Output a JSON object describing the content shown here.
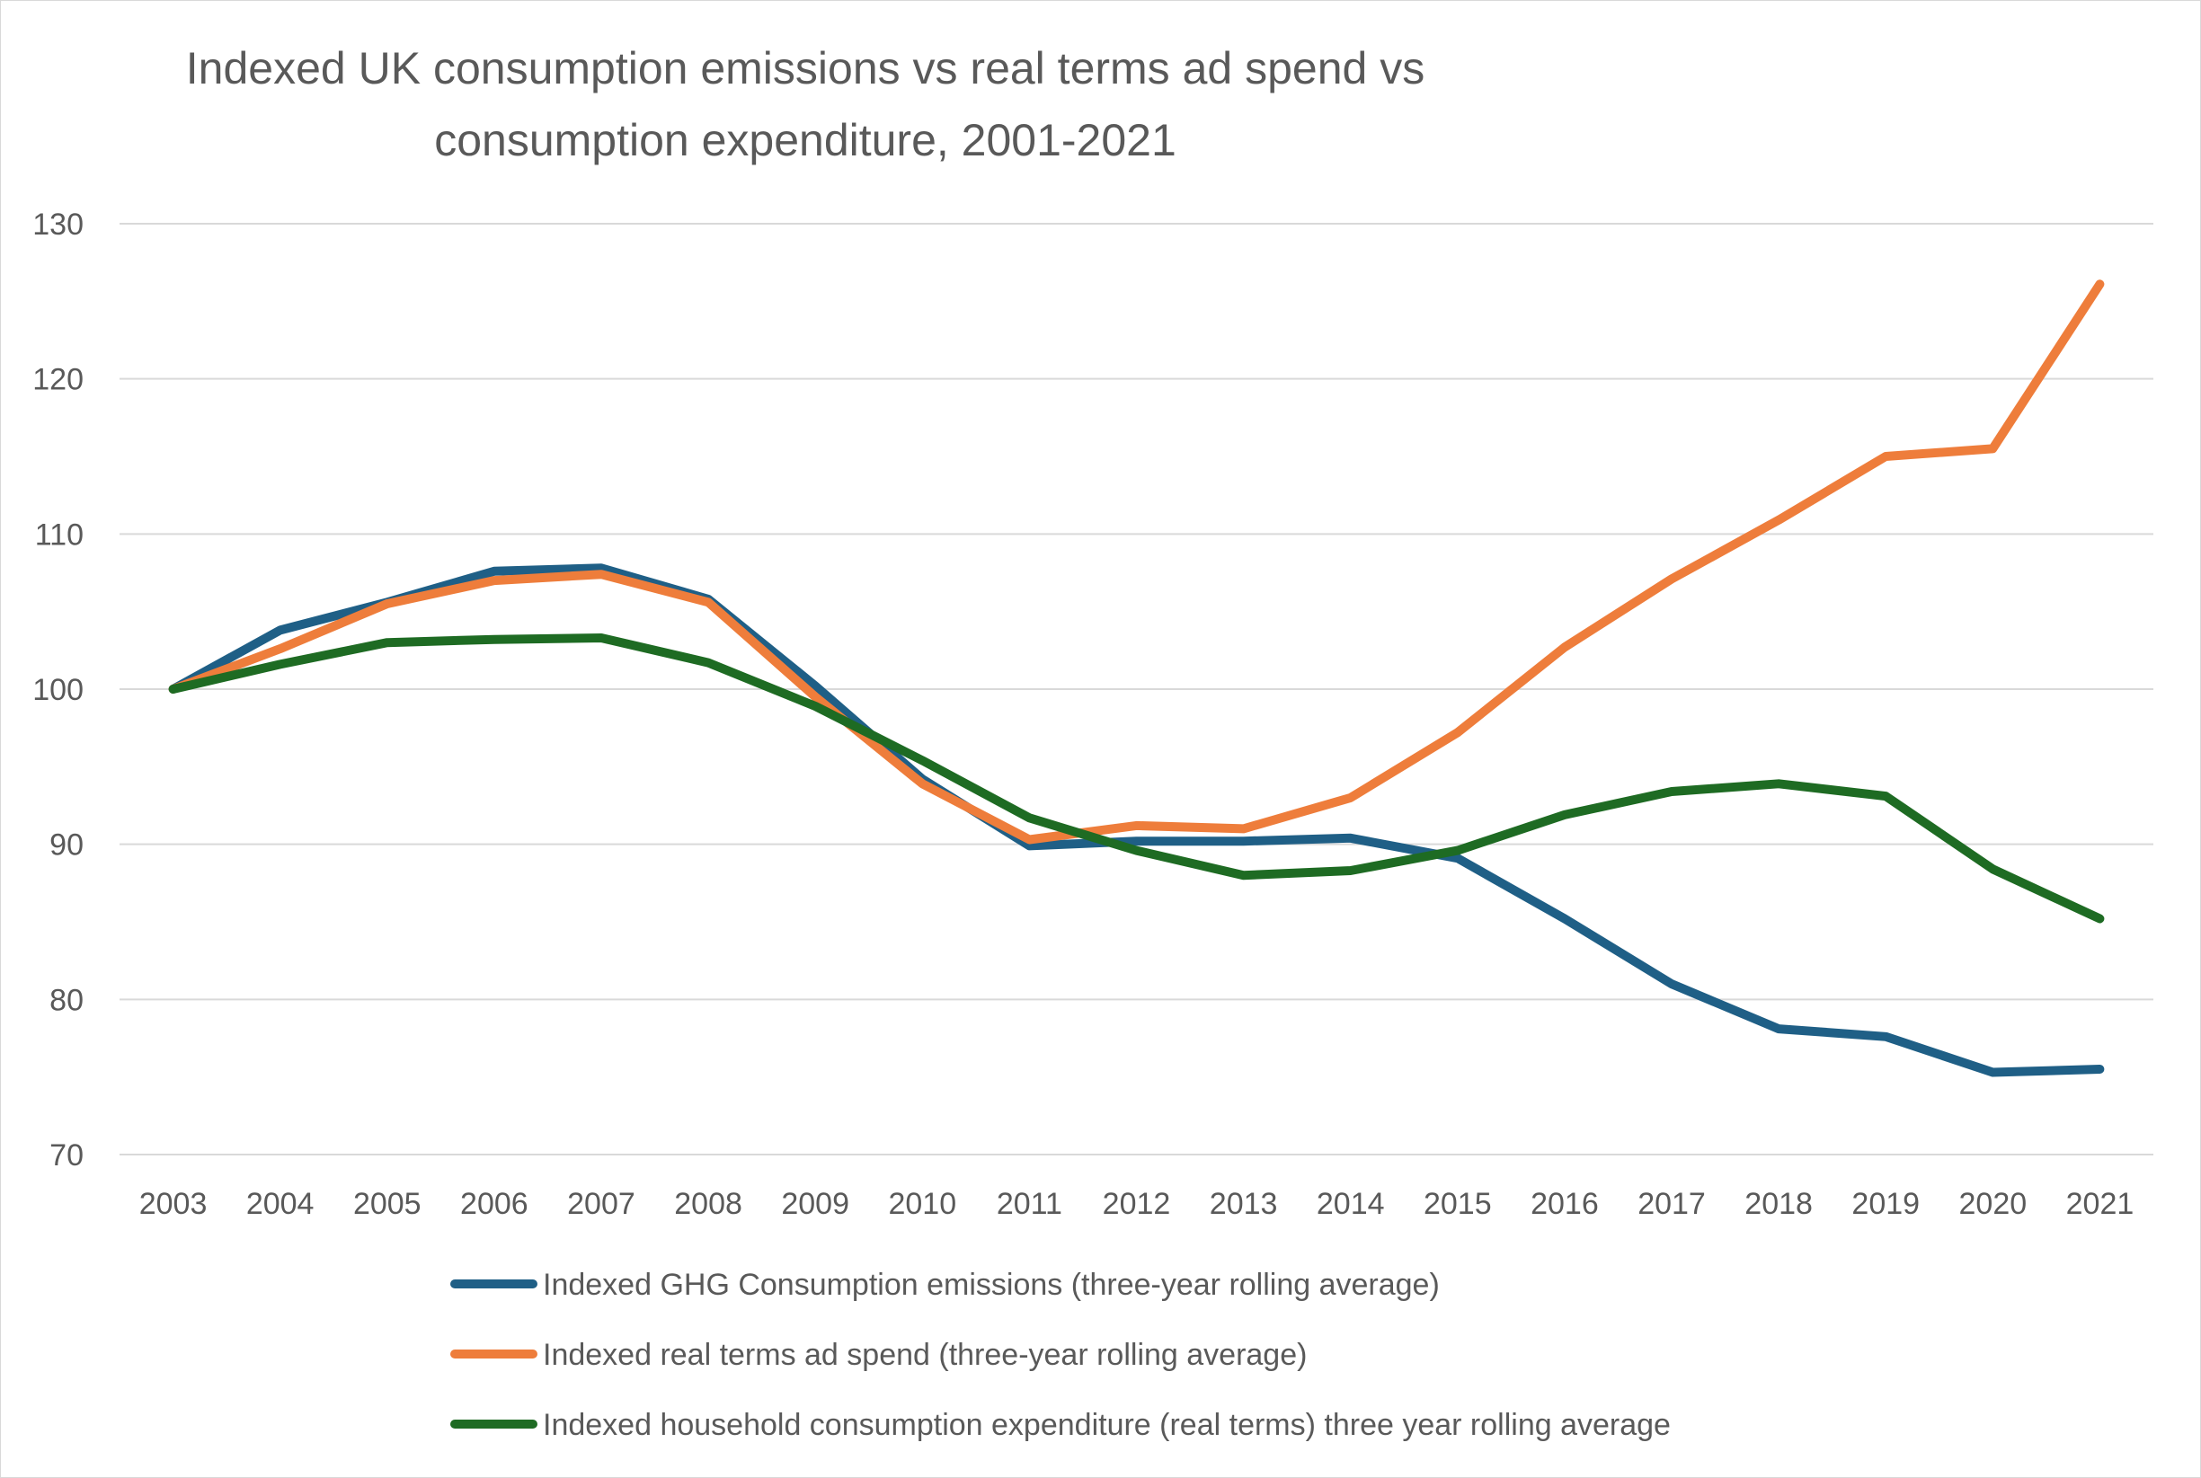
{
  "chart_data": {
    "type": "line",
    "title": "Indexed UK consumption emissions vs real terms ad spend vs consumption expenditure, 2001-2021",
    "title_lines": [
      "Indexed UK consumption emissions vs real terms ad spend vs",
      "consumption expenditure, 2001-2021"
    ],
    "xlabel": "",
    "ylabel": "",
    "categories": [
      "2003",
      "2004",
      "2005",
      "2006",
      "2007",
      "2008",
      "2009",
      "2010",
      "2011",
      "2012",
      "2013",
      "2014",
      "2015",
      "2016",
      "2017",
      "2018",
      "2019",
      "2020",
      "2021"
    ],
    "ylim": [
      70,
      130
    ],
    "yticks": [
      70,
      80,
      90,
      100,
      110,
      120,
      130
    ],
    "grid": true,
    "legend_position": "bottom",
    "series": [
      {
        "name": "Indexed GHG Consumption emissions (three-year rolling average)",
        "color": "#1f5f86",
        "values": [
          100,
          103.8,
          105.6,
          107.6,
          107.8,
          105.8,
          100.2,
          94.2,
          89.9,
          90.2,
          90.2,
          90.4,
          89.1,
          85.2,
          81.0,
          78.1,
          77.6,
          75.3,
          75.5
        ]
      },
      {
        "name": "Indexed real terms ad spend (three-year rolling average)",
        "color": "#ee7d3b",
        "values": [
          100,
          102.6,
          105.5,
          107.0,
          107.4,
          105.6,
          99.5,
          93.9,
          90.3,
          91.2,
          91.0,
          93.0,
          97.2,
          102.7,
          107.1,
          110.9,
          115.0,
          115.5,
          126.1
        ]
      },
      {
        "name": "Indexed household consumption expenditure (real terms) three year rolling average",
        "color": "#1e6b23",
        "values": [
          100,
          101.6,
          103.0,
          103.2,
          103.3,
          101.7,
          98.9,
          95.4,
          91.7,
          89.6,
          88.0,
          88.3,
          89.6,
          91.9,
          93.4,
          93.9,
          93.1,
          88.4,
          85.2
        ]
      }
    ]
  }
}
